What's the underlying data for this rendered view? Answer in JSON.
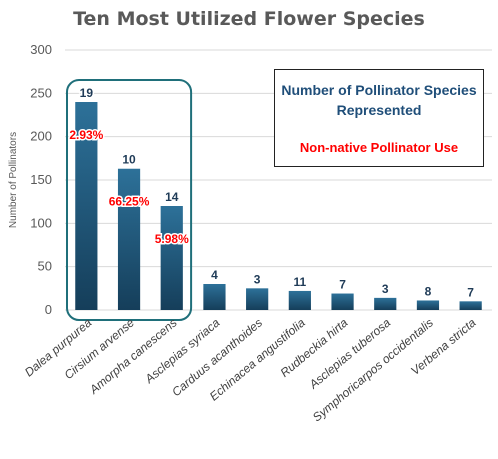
{
  "title": "Ten Most Utilized Flower Species",
  "legend": {
    "line1": "Number of Pollinator Species Represented",
    "line2": "Non-native Pollinator Use"
  },
  "chart_data": {
    "type": "bar",
    "title": "Ten Most Utilized Flower Species",
    "xlabel": "",
    "ylabel": "Number of Pollinators",
    "ylim": [
      0,
      300
    ],
    "yticks": [
      0,
      50,
      100,
      150,
      200,
      250,
      300
    ],
    "categories": [
      "Dalea purpurea",
      "Cirsium arvense",
      "Amorpha canescens",
      "Asclepias syriaca",
      "Carduus acanthoides",
      "Echinacea angustifolia",
      "Rudbeckia hirta",
      "Asclepias tuberosa",
      "Symphoricarpos occidentalis",
      "Verbena stricta"
    ],
    "values": [
      240,
      163,
      120,
      30,
      25,
      22,
      19,
      14,
      11,
      10
    ],
    "species_counts": [
      "19",
      "10",
      "14",
      "4",
      "3",
      "11",
      "7",
      "3",
      "8",
      "7"
    ],
    "nonnative_percent": [
      "2.93%",
      "66.25%",
      "5.98%",
      null,
      null,
      null,
      null,
      null,
      null,
      null
    ],
    "highlight_first": 3,
    "grid": true,
    "bar_color": "#1f5f85",
    "label_color": "#1f3b57",
    "percent_color": "#ff0000",
    "highlight_color": "#1f6f7a"
  }
}
